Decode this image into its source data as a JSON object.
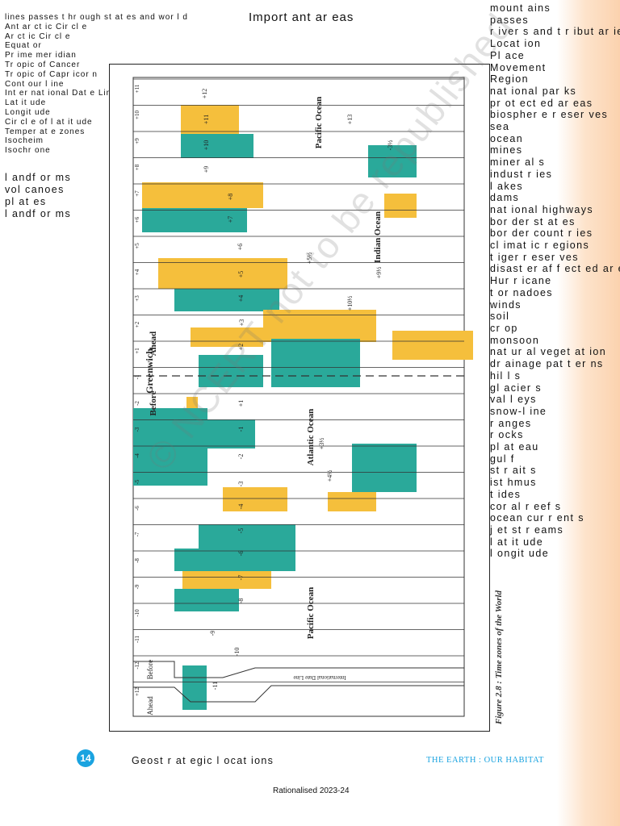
{
  "title": "Import ant  ar eas",
  "left_list_small": [
    "lines passes t hr ough st at es and wor l d",
    "Ant ar ct ic Cir cl e",
    "Ar ct ic Cir cl e",
    "Equat or",
    "Pr ime mer idian",
    "Tr opic of Cancer",
    "Tr opic of Capr icor n",
    "Cont our l ine",
    "Int er nat ional Dat e Line",
    "Lat it ude",
    "Longit ude",
    "Cir cl e of l at it ude",
    "Temper at e zones",
    "Isocheim",
    "Isochr one"
  ],
  "left_list_large": [
    "l andf or ms",
    "vol canoes",
    "pl at es",
    "l andf or ms"
  ],
  "right_list": [
    "mount ains",
    "passes",
    "r iver s and t r ibut ar ies",
    "Locat ion",
    "Pl ace",
    "Movement",
    "Region",
    "nat ional par ks",
    "pr ot ect ed ar eas",
    "biospher e r eser ves",
    "sea",
    "ocean",
    "mines",
    "miner al s",
    "indust r ies",
    "l akes",
    "dams",
    "nat ional highways",
    "bor der st at es",
    "bor der count r ies",
    "cl imat ic r egions",
    "t iger r eser ves",
    "disast er af f ect ed ar ea",
    "Hur r icane",
    "t or nadoes",
    "winds",
    "soil",
    "cr op",
    "monsoon",
    "nat ur al veget at ion",
    "dr ainage pat t er ns",
    "hil l s",
    "gl acier s",
    "val l eys",
    "snow-l ine",
    "r anges",
    "r ocks",
    "pl at eau",
    "gul f",
    "st r ait s",
    "ist hmus",
    "t ides",
    "cor al r eef s",
    "ocean cur r ent s",
    "j et st r eams",
    "l at it ude",
    "l ongit ude"
  ],
  "map": {
    "ocean_labels": {
      "pacific_top": "Pacific Ocean",
      "indian": "Indian Ocean",
      "atlantic": "Atlantic Ocean",
      "pacific_bottom": "Pacific Ocean"
    },
    "greenwich": "Greenwich",
    "ahead": "Ahead",
    "before": "Before",
    "idl": "International Date Line",
    "scale_labels": [
      "+11",
      "+10",
      "+9",
      "+8",
      "+7",
      "+6",
      "+5",
      "+4",
      "+3",
      "+2",
      "+1",
      "-1",
      "-2",
      "-3",
      "-4",
      "-5",
      "-6",
      "-7",
      "-8",
      "-9",
      "-10",
      "-11",
      "-12",
      "+12"
    ],
    "zone_labels": [
      "+12",
      "+11",
      "+10",
      "+9",
      "+8",
      "+7",
      "+6",
      "+5",
      "+4",
      "+3",
      "+2",
      "+1",
      "-1",
      "-2",
      "-3",
      "-4",
      "-5",
      "-6",
      "-7",
      "-8",
      "-9",
      "-10",
      "-11",
      "+13",
      "+9½",
      "+10½",
      "+5½",
      "+3½",
      "+4½",
      "-3½"
    ],
    "colors": {
      "yellow": "#f5bf3c",
      "teal": "#2aa99a",
      "outline": "#333333"
    }
  },
  "figure_caption": "Figure 2.8 : Time zones of the World",
  "page_number": "14",
  "footer_left": "Geost r at egic l ocat ions",
  "footer_right": "THE EARTH : OUR HABITAT",
  "rationalised": "Rationalised 2023-24",
  "watermark": "© NCERT not to be republished"
}
